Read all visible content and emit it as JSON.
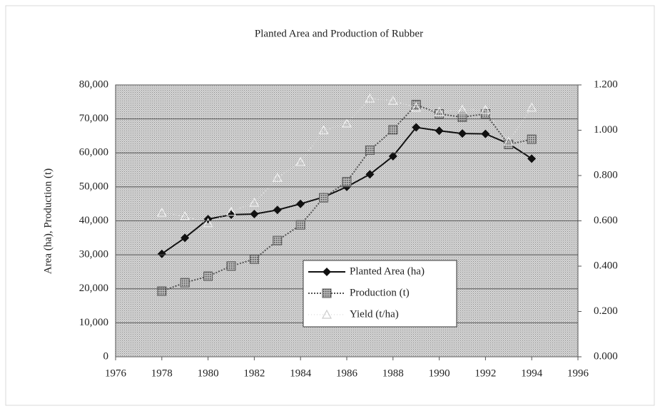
{
  "chart_data": {
    "type": "line",
    "title": "Planted Area and Production of Rubber",
    "y_label": "Area (ha), Production (t)",
    "x": [
      1978,
      1979,
      1980,
      1981,
      1982,
      1983,
      1984,
      1985,
      1986,
      1987,
      1988,
      1989,
      1990,
      1991,
      1992,
      1993,
      1994
    ],
    "xlim": [
      1976,
      1996
    ],
    "xticks": [
      1976,
      1978,
      1980,
      1982,
      1984,
      1986,
      1988,
      1990,
      1992,
      1994,
      1996
    ],
    "ylim": [
      0,
      80000
    ],
    "yticks": [
      0,
      {
        "value": 10000,
        "label": "10,000"
      },
      {
        "value": 20000,
        "label": "20,000"
      },
      {
        "value": 30000,
        "label": "30,000"
      },
      {
        "value": 40000,
        "label": "40,000"
      },
      {
        "value": 50000,
        "label": "50,000"
      },
      {
        "value": 60000,
        "label": "60,000"
      },
      {
        "value": 70000,
        "label": "70,000"
      },
      {
        "value": 80000,
        "label": "80,000"
      }
    ],
    "y2lim": [
      0,
      1.2
    ],
    "y2ticks": [
      {
        "value": 0,
        "label": "0.000"
      },
      {
        "value": 0.2,
        "label": "0.200"
      },
      {
        "value": 0.4,
        "label": "0.400"
      },
      {
        "value": 0.6,
        "label": "0.600"
      },
      {
        "value": 0.8,
        "label": "0.800"
      },
      {
        "value": 1.0,
        "label": "1.000"
      },
      {
        "value": 1.2,
        "label": "1.200"
      }
    ],
    "grid": true,
    "series": [
      {
        "name": "Planted Area (ha)",
        "color": "#111111",
        "marker": "diamond",
        "values": [
          30300,
          35000,
          40500,
          41800,
          42000,
          43200,
          45000,
          47000,
          50000,
          53700,
          59000,
          67500,
          66500,
          65700,
          65600,
          62700,
          58300
        ]
      },
      {
        "name": "Production (t)",
        "color": "#555555",
        "marker": "square",
        "values": [
          19300,
          21800,
          23700,
          26700,
          28700,
          34200,
          38800,
          46800,
          51500,
          60800,
          66800,
          74200,
          71500,
          70500,
          71500,
          62500,
          64000
        ]
      },
      {
        "name": "Yield (t/ha)",
        "color": "#e2e2e2",
        "marker": "triangle",
        "axis": "y2",
        "values": [
          0.636,
          0.62,
          0.59,
          0.64,
          0.68,
          0.79,
          0.86,
          1.0,
          1.03,
          1.14,
          1.13,
          1.1,
          1.08,
          1.09,
          1.09,
          0.95,
          1.1
        ]
      }
    ]
  }
}
